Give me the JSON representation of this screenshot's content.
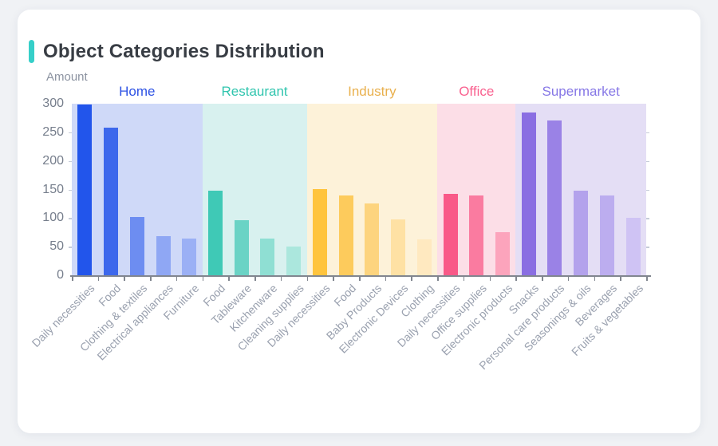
{
  "page": {
    "background": "#f0f2f5"
  },
  "card": {
    "title": "Object Categories Distribution",
    "accent_color": "#36cfc9"
  },
  "chart_data": {
    "type": "bar",
    "title": "Object Categories Distribution",
    "ylabel": "Amount",
    "xlabel": "",
    "ylim": [
      0,
      300
    ],
    "yticks": [
      0,
      50,
      100,
      150,
      200,
      250,
      300
    ],
    "grid": false,
    "legend_position": "group headers above plot, colored per group",
    "axis_color": "#81868f",
    "groups": [
      {
        "name": "Home",
        "label_color": "#2d52e4",
        "band_color": "#cfd9f8",
        "categories": [
          "Daily necessities",
          "Food",
          "Clothing & textiles",
          "Electrical appliances",
          "Furniture"
        ],
        "values": [
          298,
          258,
          102,
          68,
          64
        ],
        "bar_colors": [
          "#2255eb",
          "#3d68ec",
          "#6d8df1",
          "#8fa7f4",
          "#9bb0f5"
        ]
      },
      {
        "name": "Restaurant",
        "label_color": "#30c5ae",
        "band_color": "#d8f1ef",
        "categories": [
          "Food",
          "Tableware",
          "Kitchenware",
          "Cleaning supplies"
        ],
        "values": [
          148,
          96,
          64,
          50
        ],
        "bar_colors": [
          "#3fc9b6",
          "#6ad3c5",
          "#8fdfd3",
          "#abe7dd"
        ]
      },
      {
        "name": "Industry",
        "label_color": "#e9b04d",
        "band_color": "#fdf2d9",
        "categories": [
          "Daily necessities",
          "Food",
          "Baby Products",
          "Electronic Devices",
          "Clothing"
        ],
        "values": [
          151,
          139,
          126,
          98,
          63
        ],
        "bar_colors": [
          "#ffc43d",
          "#fdcb5c",
          "#fdd47e",
          "#fee1a4",
          "#ffe9c0"
        ]
      },
      {
        "name": "Office",
        "label_color": "#f9618f",
        "band_color": "#fcdee7",
        "categories": [
          "Daily necessities",
          "Office supplies",
          "Electronic products"
        ],
        "values": [
          142,
          139,
          75
        ],
        "bar_colors": [
          "#f95988",
          "#fa7ba0",
          "#fca4bc"
        ]
      },
      {
        "name": "Supermarket",
        "label_color": "#8677e6",
        "band_color": "#e4def5",
        "categories": [
          "Snacks",
          "Personal care products",
          "Seasonings & oils",
          "Beverages",
          "Fruits & vegetables"
        ],
        "values": [
          284,
          271,
          148,
          140,
          100
        ],
        "bar_colors": [
          "#8a6ee2",
          "#9a82e6",
          "#b3a2ec",
          "#bcadef",
          "#cfc3f4"
        ]
      }
    ]
  }
}
